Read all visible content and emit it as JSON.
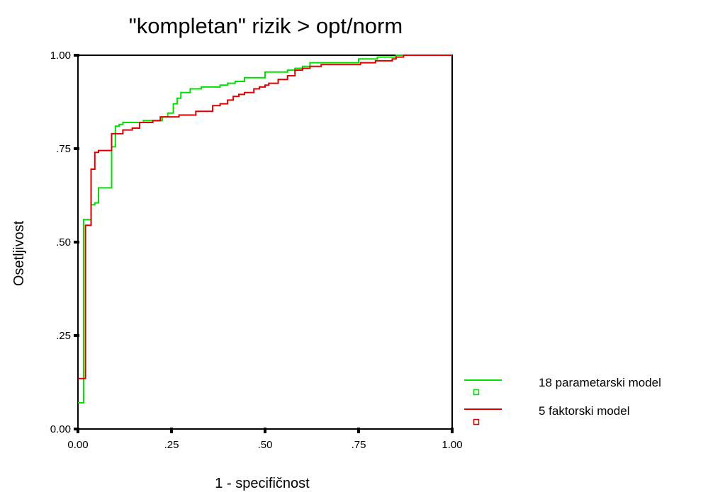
{
  "chart_data": {
    "type": "line",
    "title": "\"kompletan\" rizik > opt/norm",
    "xlabel": "1 - specifičnost",
    "ylabel": "Osetljivost",
    "xlim": [
      0,
      1
    ],
    "ylim": [
      0,
      1
    ],
    "x_ticks": [
      0,
      0.25,
      0.5,
      0.75,
      1
    ],
    "x_tick_labels": [
      "0.00",
      ".25",
      ".50",
      ".75",
      "1.00"
    ],
    "y_ticks": [
      0,
      0.25,
      0.5,
      0.75,
      1
    ],
    "y_tick_labels": [
      "0.00",
      ".25",
      ".50",
      ".75",
      "1.00"
    ],
    "grid": false,
    "legend_position": "bottom-right",
    "series": [
      {
        "name": "18 parametarski model",
        "color": "#00e000",
        "x": [
          0,
          0.015,
          0.015,
          0.035,
          0.035,
          0.045,
          0.045,
          0.055,
          0.055,
          0.09,
          0.09,
          0.1,
          0.1,
          0.11,
          0.11,
          0.12,
          0.12,
          0.175,
          0.175,
          0.225,
          0.225,
          0.24,
          0.24,
          0.255,
          0.255,
          0.265,
          0.265,
          0.275,
          0.275,
          0.3,
          0.3,
          0.33,
          0.33,
          0.38,
          0.38,
          0.4,
          0.4,
          0.42,
          0.42,
          0.445,
          0.445,
          0.5,
          0.5,
          0.56,
          0.56,
          0.58,
          0.58,
          0.6,
          0.6,
          0.62,
          0.62,
          0.75,
          0.75,
          0.8,
          0.8,
          0.85,
          0.85,
          0.86,
          0.86,
          0.97,
          0.97,
          1
        ],
        "y": [
          0.07,
          0.07,
          0.56,
          0.56,
          0.6,
          0.6,
          0.605,
          0.605,
          0.645,
          0.645,
          0.755,
          0.755,
          0.81,
          0.81,
          0.815,
          0.815,
          0.82,
          0.82,
          0.825,
          0.825,
          0.835,
          0.835,
          0.845,
          0.845,
          0.87,
          0.87,
          0.885,
          0.885,
          0.9,
          0.9,
          0.91,
          0.91,
          0.915,
          0.915,
          0.92,
          0.92,
          0.925,
          0.925,
          0.93,
          0.93,
          0.94,
          0.94,
          0.955,
          0.955,
          0.96,
          0.96,
          0.965,
          0.965,
          0.97,
          0.97,
          0.98,
          0.98,
          0.99,
          0.99,
          0.995,
          0.995,
          1.0,
          1.0,
          1.0,
          1.0,
          1.0,
          1.0
        ]
      },
      {
        "name": "5 faktorski model",
        "color": "#e00000",
        "x": [
          0,
          0.02,
          0.02,
          0.025,
          0.025,
          0.035,
          0.035,
          0.045,
          0.045,
          0.055,
          0.055,
          0.09,
          0.09,
          0.12,
          0.12,
          0.145,
          0.145,
          0.165,
          0.165,
          0.2,
          0.2,
          0.22,
          0.22,
          0.27,
          0.27,
          0.315,
          0.315,
          0.36,
          0.36,
          0.38,
          0.38,
          0.4,
          0.4,
          0.415,
          0.415,
          0.43,
          0.43,
          0.445,
          0.445,
          0.47,
          0.47,
          0.485,
          0.485,
          0.5,
          0.5,
          0.51,
          0.51,
          0.535,
          0.535,
          0.56,
          0.56,
          0.58,
          0.58,
          0.6,
          0.6,
          0.62,
          0.62,
          0.65,
          0.65,
          0.755,
          0.755,
          0.795,
          0.795,
          0.84,
          0.84,
          0.85,
          0.85,
          0.87,
          0.87,
          0.97,
          0.97,
          1
        ],
        "y": [
          0.135,
          0.135,
          0.545,
          0.545,
          0.545,
          0.545,
          0.695,
          0.695,
          0.74,
          0.74,
          0.745,
          0.745,
          0.79,
          0.79,
          0.8,
          0.8,
          0.805,
          0.805,
          0.82,
          0.82,
          0.825,
          0.825,
          0.835,
          0.835,
          0.84,
          0.84,
          0.85,
          0.85,
          0.865,
          0.865,
          0.87,
          0.87,
          0.88,
          0.88,
          0.89,
          0.89,
          0.895,
          0.895,
          0.9,
          0.9,
          0.91,
          0.91,
          0.915,
          0.915,
          0.92,
          0.92,
          0.925,
          0.925,
          0.935,
          0.935,
          0.945,
          0.945,
          0.96,
          0.96,
          0.965,
          0.965,
          0.97,
          0.97,
          0.975,
          0.975,
          0.98,
          0.98,
          0.985,
          0.985,
          0.99,
          0.99,
          0.995,
          0.995,
          1.0,
          1.0,
          1.0,
          1.0
        ]
      }
    ]
  }
}
